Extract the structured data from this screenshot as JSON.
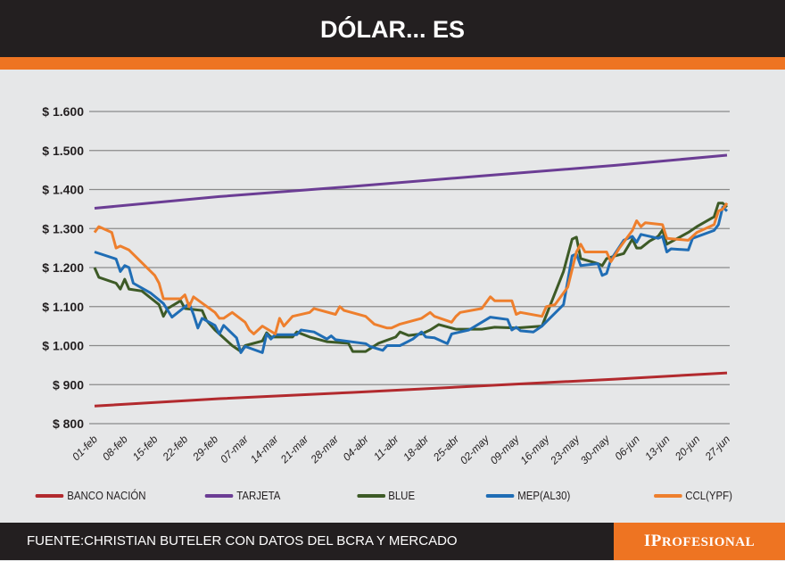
{
  "header": {
    "title": "DÓLAR... ES"
  },
  "footer": {
    "source": "FUENTE:CHRISTIAN BUTELER CON DATOS DEL BCRA Y MERCADO",
    "logo": "IPROFESIONAL"
  },
  "chart_data": {
    "type": "line",
    "title": "",
    "ylim": [
      800,
      1600
    ],
    "grid": true,
    "legend": "bottom",
    "y_ticks": [
      {
        "v": 800,
        "label": "$ 800"
      },
      {
        "v": 900,
        "label": "$ 900"
      },
      {
        "v": 1000,
        "label": "$ 1.000"
      },
      {
        "v": 1100,
        "label": "$ 1.100"
      },
      {
        "v": 1200,
        "label": "$ 1.200"
      },
      {
        "v": 1300,
        "label": "$ 1.300"
      },
      {
        "v": 1400,
        "label": "$ 1.400"
      },
      {
        "v": 1500,
        "label": "$ 1.500"
      },
      {
        "v": 1600,
        "label": "$ 1.600"
      }
    ],
    "x_ticks": [
      "01-feb",
      "08-feb",
      "15-feb",
      "22-feb",
      "29-feb",
      "07-mar",
      "14-mar",
      "21-mar",
      "28-mar",
      "04-abr",
      "11-abr",
      "18-abr",
      "25-abr",
      "02-may",
      "09-may",
      "16-may",
      "23-may",
      "30-may",
      "06-jun",
      "13-jun",
      "20-jun",
      "27-jun"
    ],
    "series": [
      {
        "name": "BANCO NACIÓN",
        "color": "#b22a2e",
        "points": [
          [
            "01-feb",
            845
          ],
          [
            "01-mar",
            864
          ],
          [
            "01-abr",
            880
          ],
          [
            "01-may",
            897
          ],
          [
            "01-jun",
            914
          ],
          [
            "27-jun",
            930
          ]
        ]
      },
      {
        "name": "TARJETA",
        "color": "#6b3d94",
        "points": [
          [
            "01-feb",
            1352
          ],
          [
            "01-mar",
            1382
          ],
          [
            "01-abr",
            1408
          ],
          [
            "01-may",
            1435
          ],
          [
            "01-jun",
            1462
          ],
          [
            "27-jun",
            1488
          ]
        ]
      },
      {
        "name": "BLUE",
        "color": "#3d5a26",
        "points": [
          [
            "01-feb",
            1200
          ],
          [
            "02-feb",
            1175
          ],
          [
            "06-feb",
            1160
          ],
          [
            "07-feb",
            1145
          ],
          [
            "08-feb",
            1170
          ],
          [
            "09-feb",
            1145
          ],
          [
            "12-feb",
            1140
          ],
          [
            "16-feb",
            1105
          ],
          [
            "17-feb",
            1075
          ],
          [
            "18-feb",
            1095
          ],
          [
            "21-feb",
            1115
          ],
          [
            "22-feb",
            1095
          ],
          [
            "26-feb",
            1090
          ],
          [
            "27-feb",
            1065
          ],
          [
            "29-feb",
            1040
          ],
          [
            "04-mar",
            1000
          ],
          [
            "06-mar",
            985
          ],
          [
            "07-mar",
            1000
          ],
          [
            "11-mar",
            1012
          ],
          [
            "12-mar",
            1033
          ],
          [
            "13-mar",
            1022
          ],
          [
            "18-mar",
            1022
          ],
          [
            "19-mar",
            1035
          ],
          [
            "22-mar",
            1022
          ],
          [
            "26-mar",
            1010
          ],
          [
            "31-mar",
            1006
          ],
          [
            "01-abr",
            985
          ],
          [
            "04-abr",
            985
          ],
          [
            "07-abr",
            1006
          ],
          [
            "11-abr",
            1022
          ],
          [
            "12-abr",
            1035
          ],
          [
            "14-abr",
            1026
          ],
          [
            "17-abr",
            1030
          ],
          [
            "19-abr",
            1040
          ],
          [
            "21-abr",
            1054
          ],
          [
            "25-abr",
            1042
          ],
          [
            "01-may",
            1042
          ],
          [
            "04-may",
            1047
          ],
          [
            "09-may",
            1045
          ],
          [
            "15-may",
            1050
          ],
          [
            "20-may",
            1190
          ],
          [
            "22-may",
            1273
          ],
          [
            "23-may",
            1278
          ],
          [
            "24-may",
            1223
          ],
          [
            "28-may",
            1210
          ],
          [
            "29-may",
            1205
          ],
          [
            "30-may",
            1223
          ],
          [
            "01-jun",
            1230
          ],
          [
            "03-jun",
            1236
          ],
          [
            "05-jun",
            1273
          ],
          [
            "06-jun",
            1250
          ],
          [
            "07-jun",
            1250
          ],
          [
            "09-jun",
            1268
          ],
          [
            "11-jun",
            1280
          ],
          [
            "12-jun",
            1296
          ],
          [
            "13-jun",
            1260
          ],
          [
            "18-jun",
            1290
          ],
          [
            "20-jun",
            1305
          ],
          [
            "24-jun",
            1330
          ],
          [
            "25-jun",
            1365
          ],
          [
            "26-jun",
            1365
          ],
          [
            "27-jun",
            1355
          ]
        ]
      },
      {
        "name": "MEP(AL30)",
        "color": "#1f6db5",
        "points": [
          [
            "01-feb",
            1240
          ],
          [
            "06-feb",
            1222
          ],
          [
            "07-feb",
            1190
          ],
          [
            "08-feb",
            1205
          ],
          [
            "09-feb",
            1200
          ],
          [
            "10-feb",
            1160
          ],
          [
            "14-feb",
            1135
          ],
          [
            "17-feb",
            1108
          ],
          [
            "19-feb",
            1073
          ],
          [
            "23-feb",
            1108
          ],
          [
            "24-feb",
            1080
          ],
          [
            "25-feb",
            1045
          ],
          [
            "26-feb",
            1070
          ],
          [
            "29-feb",
            1052
          ],
          [
            "01-mar",
            1030
          ],
          [
            "02-mar",
            1052
          ],
          [
            "05-mar",
            1020
          ],
          [
            "06-mar",
            982
          ],
          [
            "07-mar",
            998
          ],
          [
            "11-mar",
            982
          ],
          [
            "12-mar",
            1030
          ],
          [
            "13-mar",
            1017
          ],
          [
            "14-mar",
            1028
          ],
          [
            "19-mar",
            1028
          ],
          [
            "20-mar",
            1040
          ],
          [
            "23-mar",
            1035
          ],
          [
            "26-mar",
            1017
          ],
          [
            "27-mar",
            1025
          ],
          [
            "28-mar",
            1015
          ],
          [
            "04-abr",
            1005
          ],
          [
            "05-abr",
            998
          ],
          [
            "08-abr",
            988
          ],
          [
            "09-abr",
            1000
          ],
          [
            "12-abr",
            1000
          ],
          [
            "15-abr",
            1017
          ],
          [
            "17-abr",
            1035
          ],
          [
            "18-abr",
            1022
          ],
          [
            "20-abr",
            1020
          ],
          [
            "23-abr",
            1005
          ],
          [
            "24-abr",
            1030
          ],
          [
            "28-abr",
            1040
          ],
          [
            "01-may",
            1060
          ],
          [
            "03-may",
            1073
          ],
          [
            "07-may",
            1067
          ],
          [
            "08-may",
            1040
          ],
          [
            "09-may",
            1047
          ],
          [
            "10-may",
            1038
          ],
          [
            "13-may",
            1035
          ],
          [
            "15-may",
            1050
          ],
          [
            "20-may",
            1105
          ],
          [
            "22-may",
            1230
          ],
          [
            "23-may",
            1235
          ],
          [
            "24-may",
            1205
          ],
          [
            "28-may",
            1210
          ],
          [
            "29-may",
            1180
          ],
          [
            "30-may",
            1185
          ],
          [
            "31-may",
            1220
          ],
          [
            "03-jun",
            1270
          ],
          [
            "05-jun",
            1280
          ],
          [
            "06-jun",
            1265
          ],
          [
            "07-jun",
            1285
          ],
          [
            "11-jun",
            1275
          ],
          [
            "12-jun",
            1280
          ],
          [
            "13-jun",
            1240
          ],
          [
            "14-jun",
            1248
          ],
          [
            "18-jun",
            1245
          ],
          [
            "19-jun",
            1275
          ],
          [
            "24-jun",
            1295
          ],
          [
            "25-jun",
            1310
          ],
          [
            "26-jun",
            1355
          ],
          [
            "27-jun",
            1345
          ]
        ]
      },
      {
        "name": "CCL(YPF)",
        "color": "#ee7f2d",
        "points": [
          [
            "01-feb",
            1290
          ],
          [
            "02-feb",
            1305
          ],
          [
            "05-feb",
            1290
          ],
          [
            "06-feb",
            1250
          ],
          [
            "07-feb",
            1255
          ],
          [
            "09-feb",
            1245
          ],
          [
            "15-feb",
            1180
          ],
          [
            "16-feb",
            1160
          ],
          [
            "17-feb",
            1120
          ],
          [
            "21-feb",
            1120
          ],
          [
            "22-feb",
            1130
          ],
          [
            "23-feb",
            1100
          ],
          [
            "24-feb",
            1125
          ],
          [
            "29-feb",
            1085
          ],
          [
            "01-mar",
            1070
          ],
          [
            "02-mar",
            1070
          ],
          [
            "04-mar",
            1085
          ],
          [
            "07-mar",
            1060
          ],
          [
            "08-mar",
            1040
          ],
          [
            "09-mar",
            1030
          ],
          [
            "11-mar",
            1050
          ],
          [
            "14-mar",
            1030
          ],
          [
            "15-mar",
            1070
          ],
          [
            "16-mar",
            1050
          ],
          [
            "18-mar",
            1075
          ],
          [
            "22-mar",
            1085
          ],
          [
            "23-mar",
            1095
          ],
          [
            "28-mar",
            1080
          ],
          [
            "29-mar",
            1100
          ],
          [
            "30-mar",
            1090
          ],
          [
            "04-abr",
            1075
          ],
          [
            "06-abr",
            1055
          ],
          [
            "09-abr",
            1045
          ],
          [
            "10-abr",
            1045
          ],
          [
            "12-abr",
            1055
          ],
          [
            "17-abr",
            1070
          ],
          [
            "19-abr",
            1085
          ],
          [
            "20-abr",
            1075
          ],
          [
            "24-abr",
            1060
          ],
          [
            "25-abr",
            1075
          ],
          [
            "26-abr",
            1085
          ],
          [
            "01-may",
            1095
          ],
          [
            "03-may",
            1125
          ],
          [
            "04-may",
            1115
          ],
          [
            "08-may",
            1115
          ],
          [
            "09-may",
            1080
          ],
          [
            "10-may",
            1085
          ],
          [
            "15-may",
            1075
          ],
          [
            "16-may",
            1100
          ],
          [
            "18-may",
            1105
          ],
          [
            "21-may",
            1150
          ],
          [
            "23-may",
            1240
          ],
          [
            "24-may",
            1260
          ],
          [
            "25-may",
            1240
          ],
          [
            "30-may",
            1240
          ],
          [
            "31-may",
            1215
          ],
          [
            "02-jun",
            1250
          ],
          [
            "05-jun",
            1295
          ],
          [
            "06-jun",
            1320
          ],
          [
            "07-jun",
            1305
          ],
          [
            "08-jun",
            1315
          ],
          [
            "12-jun",
            1310
          ],
          [
            "13-jun",
            1275
          ],
          [
            "18-jun",
            1270
          ],
          [
            "20-jun",
            1290
          ],
          [
            "24-jun",
            1310
          ],
          [
            "25-jun",
            1345
          ],
          [
            "26-jun",
            1350
          ],
          [
            "27-jun",
            1365
          ]
        ]
      }
    ]
  }
}
